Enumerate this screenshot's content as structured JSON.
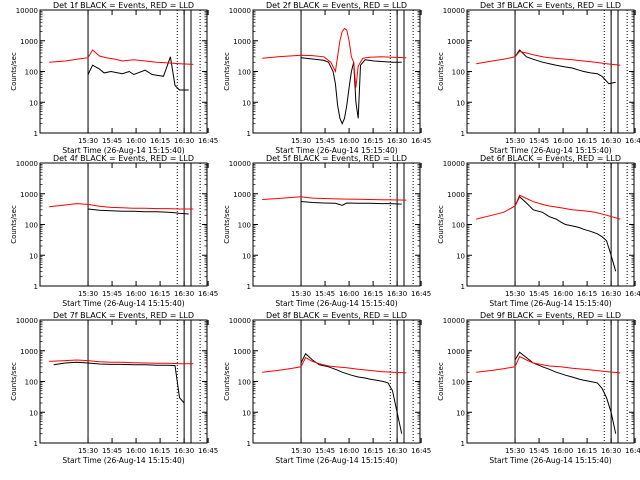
{
  "colors": {
    "events": "#000000",
    "lld": "#ff0000",
    "axis": "#000000",
    "background": "#ffffff"
  },
  "chart_data": [
    {
      "type": "line",
      "title": "Det 1f BLACK = Events, RED = LLD",
      "x_ticks": [
        "15:30",
        "15:45",
        "16:00",
        "16:15",
        "16:30",
        "16:45"
      ],
      "xlabel": "Start Time (26-Aug-14 15:15:40)",
      "ylabel": "Counts/sec",
      "y_ticks": [
        "1",
        "10",
        "100",
        "1000",
        "10000"
      ],
      "ylim": [
        1,
        10000
      ],
      "y_scale": "log",
      "series": [
        {
          "color": "#000000",
          "x": [
            0,
            2,
            5,
            7,
            10,
            15,
            18,
            20,
            25,
            28,
            30,
            33,
            36,
            38,
            40,
            44
          ],
          "y": [
            80,
            160,
            120,
            90,
            100,
            85,
            100,
            80,
            110,
            80,
            75,
            70,
            300,
            35,
            25,
            25
          ]
        },
        {
          "color": "#ff0000",
          "x": [
            -17,
            -10,
            -5,
            0,
            2,
            5,
            8,
            12,
            15,
            20,
            25,
            30,
            35,
            40,
            46
          ],
          "y": [
            200,
            220,
            250,
            280,
            500,
            320,
            280,
            250,
            220,
            240,
            220,
            200,
            190,
            180,
            170
          ]
        }
      ]
    },
    {
      "type": "line",
      "title": "Det 2f BLACK = Events, RED = LLD",
      "x_ticks": [
        "15:30",
        "15:45",
        "16:00",
        "16:15",
        "16:30",
        "16:45"
      ],
      "xlabel": "Start Time (26-Aug-14 15:15:40)",
      "ylabel": "Counts/sec",
      "y_ticks": [
        "1",
        "10",
        "100",
        "1000",
        "10000"
      ],
      "ylim": [
        1,
        10000
      ],
      "y_scale": "log",
      "series": [
        {
          "color": "#000000",
          "x": [
            0,
            4,
            8,
            10,
            12,
            14,
            15,
            16,
            17,
            18,
            19,
            20,
            21,
            22,
            23,
            24,
            25,
            26,
            28,
            30,
            32,
            36,
            40,
            44
          ],
          "y": [
            280,
            260,
            240,
            230,
            200,
            100,
            40,
            8,
            3,
            2,
            3,
            8,
            30,
            100,
            200,
            10,
            3,
            160,
            240,
            230,
            220,
            210,
            200,
            200
          ]
        },
        {
          "color": "#ff0000",
          "x": [
            -17,
            -10,
            -5,
            0,
            5,
            10,
            13,
            15,
            17,
            18,
            19,
            20,
            21,
            22,
            23,
            24,
            25,
            27,
            30,
            35,
            40,
            46
          ],
          "y": [
            270,
            300,
            320,
            340,
            330,
            300,
            200,
            100,
            1000,
            2000,
            2500,
            2200,
            1000,
            300,
            200,
            30,
            150,
            270,
            290,
            300,
            290,
            280
          ]
        }
      ]
    },
    {
      "type": "line",
      "title": "Det 3f BLACK = Events, RED = LLD",
      "x_ticks": [
        "15:30",
        "15:45",
        "16:00",
        "16:15",
        "16:30",
        "16:45"
      ],
      "xlabel": "Start Time (26-Aug-14 15:15:40)",
      "ylabel": "Counts/sec",
      "y_ticks": [
        "1",
        "10",
        "100",
        "1000",
        "10000"
      ],
      "ylim": [
        1,
        10000
      ],
      "y_scale": "log",
      "series": [
        {
          "color": "#000000",
          "x": [
            0,
            2,
            5,
            8,
            12,
            15,
            18,
            20,
            22,
            25,
            28,
            30,
            33,
            36,
            38,
            41,
            44
          ],
          "y": [
            300,
            500,
            300,
            250,
            200,
            180,
            160,
            150,
            140,
            130,
            110,
            100,
            90,
            85,
            70,
            40,
            45
          ]
        },
        {
          "color": "#ff0000",
          "x": [
            -17,
            -10,
            -5,
            0,
            2,
            5,
            8,
            12,
            15,
            20,
            25,
            30,
            35,
            40,
            46
          ],
          "y": [
            180,
            220,
            250,
            300,
            450,
            400,
            350,
            300,
            280,
            260,
            240,
            220,
            200,
            180,
            160
          ]
        }
      ]
    },
    {
      "type": "line",
      "title": "Det 4f BLACK = Events, RED = LLD",
      "x_ticks": [
        "15:30",
        "15:45",
        "16:00",
        "16:15",
        "16:30",
        "16:45"
      ],
      "xlabel": "Start Time (26-Aug-14 15:15:40)",
      "ylabel": "Counts/sec",
      "y_ticks": [
        "1",
        "10",
        "100",
        "1000",
        "10000"
      ],
      "ylim": [
        1,
        10000
      ],
      "y_scale": "log",
      "series": [
        {
          "color": "#000000",
          "x": [
            0,
            5,
            10,
            15,
            20,
            25,
            30,
            35,
            38,
            40,
            44
          ],
          "y": [
            320,
            290,
            280,
            270,
            270,
            260,
            260,
            250,
            240,
            230,
            220
          ]
        },
        {
          "color": "#ff0000",
          "x": [
            -17,
            -10,
            -5,
            0,
            5,
            10,
            15,
            20,
            25,
            30,
            35,
            40,
            46
          ],
          "y": [
            380,
            430,
            480,
            450,
            390,
            360,
            350,
            340,
            340,
            330,
            330,
            320,
            320
          ]
        }
      ]
    },
    {
      "type": "line",
      "title": "Det 5f BLACK = Events, RED = LLD",
      "x_ticks": [
        "15:30",
        "15:45",
        "16:00",
        "16:15",
        "16:30",
        "16:45"
      ],
      "xlabel": "Start Time (26-Aug-14 15:15:40)",
      "ylabel": "Counts/sec",
      "y_ticks": [
        "1",
        "10",
        "100",
        "1000",
        "10000"
      ],
      "ylim": [
        1,
        10000
      ],
      "y_scale": "log",
      "series": [
        {
          "color": "#000000",
          "x": [
            0,
            5,
            10,
            15,
            18,
            20,
            25,
            30,
            35,
            38,
            40,
            44
          ],
          "y": [
            560,
            520,
            500,
            490,
            420,
            500,
            490,
            490,
            480,
            480,
            470,
            460
          ]
        },
        {
          "color": "#ff0000",
          "x": [
            -17,
            -10,
            -5,
            0,
            5,
            10,
            15,
            20,
            25,
            30,
            35,
            40,
            46
          ],
          "y": [
            650,
            700,
            750,
            800,
            720,
            700,
            680,
            670,
            660,
            650,
            640,
            630,
            620
          ]
        }
      ]
    },
    {
      "type": "line",
      "title": "Det 6f BLACK = Events, RED = LLD",
      "x_ticks": [
        "15:30",
        "15:45",
        "16:00",
        "16:15",
        "16:30",
        "16:45"
      ],
      "xlabel": "Start Time (26-Aug-14 15:15:40)",
      "ylabel": "Counts/sec",
      "y_ticks": [
        "1",
        "10",
        "100",
        "1000",
        "10000"
      ],
      "ylim": [
        1,
        10000
      ],
      "y_scale": "log",
      "series": [
        {
          "color": "#000000",
          "x": [
            0,
            2,
            5,
            8,
            12,
            15,
            18,
            20,
            22,
            25,
            28,
            30,
            33,
            36,
            38,
            40,
            42,
            44
          ],
          "y": [
            400,
            800,
            500,
            300,
            250,
            180,
            150,
            120,
            100,
            90,
            80,
            70,
            60,
            50,
            40,
            30,
            10,
            3
          ]
        },
        {
          "color": "#ff0000",
          "x": [
            -17,
            -10,
            -5,
            0,
            2,
            5,
            8,
            12,
            15,
            20,
            25,
            30,
            35,
            40,
            46
          ],
          "y": [
            150,
            200,
            250,
            400,
            900,
            700,
            550,
            450,
            400,
            350,
            300,
            280,
            250,
            200,
            150
          ]
        }
      ]
    },
    {
      "type": "line",
      "title": "Det 7f BLACK = Events, RED = LLD",
      "x_ticks": [
        "15:30",
        "15:45",
        "16:00",
        "16:15",
        "16:30",
        "16:45"
      ],
      "xlabel": "Start Time (26-Aug-14 15:15:40)",
      "ylabel": "Counts/sec",
      "y_ticks": [
        "1",
        "10",
        "100",
        "1000",
        "10000"
      ],
      "ylim": [
        1,
        10000
      ],
      "y_scale": "log",
      "series": [
        {
          "color": "#000000",
          "x": [
            -15,
            -10,
            -5,
            0,
            5,
            10,
            15,
            20,
            25,
            30,
            35,
            38,
            40,
            42
          ],
          "y": [
            350,
            400,
            420,
            400,
            370,
            360,
            360,
            350,
            350,
            340,
            340,
            330,
            30,
            20
          ]
        },
        {
          "color": "#ff0000",
          "x": [
            -17,
            -10,
            -5,
            0,
            5,
            10,
            15,
            20,
            25,
            30,
            35,
            40,
            46
          ],
          "y": [
            450,
            480,
            500,
            480,
            440,
            420,
            420,
            410,
            400,
            390,
            390,
            380,
            380
          ]
        }
      ]
    },
    {
      "type": "line",
      "title": "Det 8f BLACK = Events, RED = LLD",
      "x_ticks": [
        "15:30",
        "15:45",
        "16:00",
        "16:15",
        "16:30",
        "16:45"
      ],
      "xlabel": "Start Time (26-Aug-14 15:15:40)",
      "ylabel": "Counts/sec",
      "y_ticks": [
        "1",
        "10",
        "100",
        "1000",
        "10000"
      ],
      "ylim": [
        1,
        10000
      ],
      "y_scale": "log",
      "series": [
        {
          "color": "#000000",
          "x": [
            0,
            2,
            5,
            8,
            12,
            15,
            18,
            20,
            22,
            25,
            28,
            30,
            33,
            36,
            38,
            40,
            42,
            44
          ],
          "y": [
            400,
            800,
            500,
            350,
            300,
            250,
            200,
            180,
            160,
            140,
            130,
            120,
            110,
            100,
            90,
            50,
            10,
            2
          ]
        },
        {
          "color": "#ff0000",
          "x": [
            -17,
            -10,
            -5,
            0,
            2,
            5,
            8,
            12,
            15,
            20,
            25,
            30,
            35,
            40,
            46
          ],
          "y": [
            200,
            230,
            260,
            300,
            600,
            450,
            380,
            320,
            300,
            280,
            250,
            230,
            210,
            200,
            190
          ]
        }
      ]
    },
    {
      "type": "line",
      "title": "Det 9f BLACK = Events, RED = LLD",
      "x_ticks": [
        "15:30",
        "15:45",
        "16:00",
        "16:15",
        "16:30",
        "16:45"
      ],
      "xlabel": "Start Time (26-Aug-14 15:15:40)",
      "ylabel": "Counts/sec",
      "y_ticks": [
        "1",
        "10",
        "100",
        "1000",
        "10000"
      ],
      "ylim": [
        1,
        10000
      ],
      "y_scale": "log",
      "series": [
        {
          "color": "#000000",
          "x": [
            0,
            2,
            5,
            8,
            12,
            15,
            18,
            20,
            22,
            25,
            28,
            30,
            33,
            36,
            38,
            40,
            42,
            44
          ],
          "y": [
            500,
            900,
            600,
            400,
            300,
            250,
            200,
            180,
            160,
            140,
            120,
            110,
            100,
            90,
            60,
            30,
            10,
            2
          ]
        },
        {
          "color": "#ff0000",
          "x": [
            -17,
            -10,
            -5,
            0,
            2,
            5,
            8,
            12,
            15,
            20,
            25,
            30,
            35,
            40,
            46
          ],
          "y": [
            200,
            230,
            260,
            300,
            650,
            500,
            400,
            350,
            320,
            300,
            270,
            250,
            230,
            210,
            190
          ]
        }
      ]
    }
  ]
}
